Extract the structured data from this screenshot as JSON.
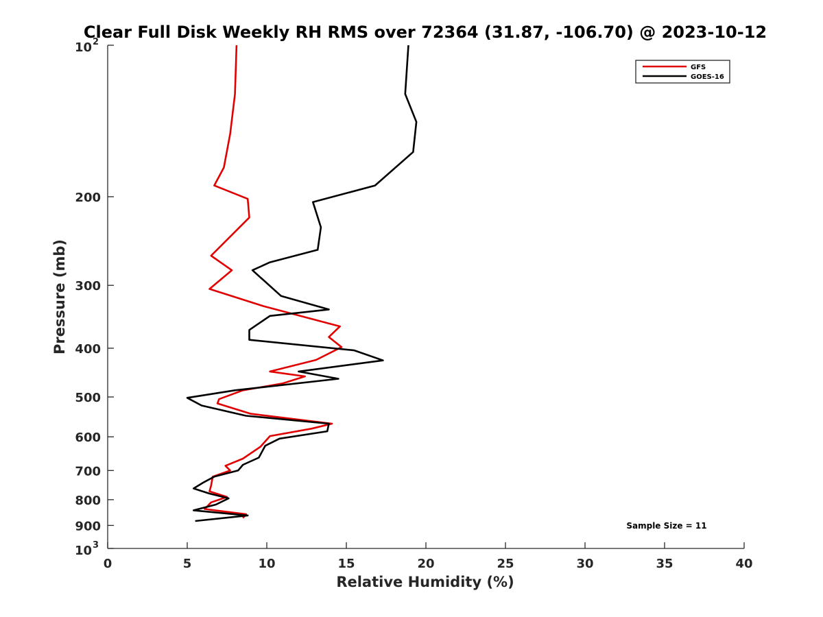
{
  "chart_data": {
    "type": "line",
    "title": "Clear Full Disk Weekly RH RMS over 72364 (31.87, -106.70) @ 2023-10-12",
    "xlabel": "Relative Humidity (%)",
    "ylabel": "Pressure (mb)",
    "xlim": [
      0,
      40
    ],
    "ylim": [
      100,
      1000
    ],
    "yscale": "log",
    "y_reversed": true,
    "x_ticks": [
      {
        "value": 0,
        "label": "0"
      },
      {
        "value": 5,
        "label": "5"
      },
      {
        "value": 10,
        "label": "10"
      },
      {
        "value": 15,
        "label": "15"
      },
      {
        "value": 20,
        "label": "20"
      },
      {
        "value": 25,
        "label": "25"
      },
      {
        "value": 30,
        "label": "30"
      },
      {
        "value": 35,
        "label": "35"
      },
      {
        "value": 40,
        "label": "40"
      }
    ],
    "y_ticks": [
      {
        "value": 100,
        "label": "10",
        "exp": "2"
      },
      {
        "value": 200,
        "label": "200"
      },
      {
        "value": 300,
        "label": "300"
      },
      {
        "value": 400,
        "label": "400"
      },
      {
        "value": 500,
        "label": "500"
      },
      {
        "value": 600,
        "label": "600"
      },
      {
        "value": 700,
        "label": "700"
      },
      {
        "value": 800,
        "label": "800"
      },
      {
        "value": 900,
        "label": "900"
      },
      {
        "value": 1000,
        "label": "10",
        "exp": "3"
      }
    ],
    "grid": false,
    "legend_position": "top-right",
    "annotation": "Sample Size = 11",
    "series": [
      {
        "name": "GFS",
        "color": "#e00000",
        "points": [
          [
            8.1,
            100
          ],
          [
            8.0,
            125
          ],
          [
            7.7,
            150
          ],
          [
            7.3,
            175
          ],
          [
            6.7,
            190
          ],
          [
            8.8,
            202
          ],
          [
            8.9,
            220
          ],
          [
            6.5,
            262
          ],
          [
            7.8,
            280
          ],
          [
            6.4,
            305
          ],
          [
            9.8,
            330
          ],
          [
            14.6,
            362
          ],
          [
            13.9,
            380
          ],
          [
            14.7,
            398
          ],
          [
            13.1,
            422
          ],
          [
            10.2,
            445
          ],
          [
            12.4,
            455
          ],
          [
            11.0,
            470
          ],
          [
            8.5,
            485
          ],
          [
            7.0,
            505
          ],
          [
            6.9,
            515
          ],
          [
            9.0,
            540
          ],
          [
            14.1,
            565
          ],
          [
            12.8,
            578
          ],
          [
            10.2,
            598
          ],
          [
            9.6,
            628
          ],
          [
            8.5,
            663
          ],
          [
            7.4,
            685
          ],
          [
            7.7,
            700
          ],
          [
            6.6,
            720
          ],
          [
            6.5,
            750
          ],
          [
            6.4,
            770
          ],
          [
            7.5,
            790
          ],
          [
            6.5,
            810
          ],
          [
            6.1,
            835
          ],
          [
            8.7,
            855
          ],
          [
            8.5,
            870
          ]
        ]
      },
      {
        "name": "GOES-16",
        "color": "#000000",
        "points": [
          [
            18.9,
            100
          ],
          [
            18.7,
            125
          ],
          [
            19.4,
            142
          ],
          [
            19.2,
            163
          ],
          [
            16.8,
            190
          ],
          [
            12.9,
            205
          ],
          [
            13.4,
            230
          ],
          [
            13.2,
            255
          ],
          [
            10.2,
            270
          ],
          [
            9.1,
            280
          ],
          [
            10.9,
            315
          ],
          [
            13.9,
            335
          ],
          [
            10.2,
            345
          ],
          [
            8.9,
            368
          ],
          [
            8.9,
            385
          ],
          [
            15.5,
            404
          ],
          [
            17.3,
            423
          ],
          [
            12.0,
            445
          ],
          [
            14.5,
            460
          ],
          [
            8.0,
            485
          ],
          [
            5.0,
            502
          ],
          [
            5.9,
            520
          ],
          [
            8.7,
            545
          ],
          [
            13.9,
            565
          ],
          [
            13.8,
            585
          ],
          [
            10.8,
            605
          ],
          [
            9.9,
            625
          ],
          [
            9.5,
            660
          ],
          [
            8.5,
            682
          ],
          [
            8.2,
            700
          ],
          [
            6.7,
            720
          ],
          [
            6.0,
            740
          ],
          [
            5.4,
            760
          ],
          [
            6.4,
            778
          ],
          [
            7.6,
            795
          ],
          [
            6.8,
            818
          ],
          [
            5.4,
            840
          ],
          [
            8.8,
            860
          ],
          [
            5.5,
            882
          ]
        ]
      }
    ]
  }
}
